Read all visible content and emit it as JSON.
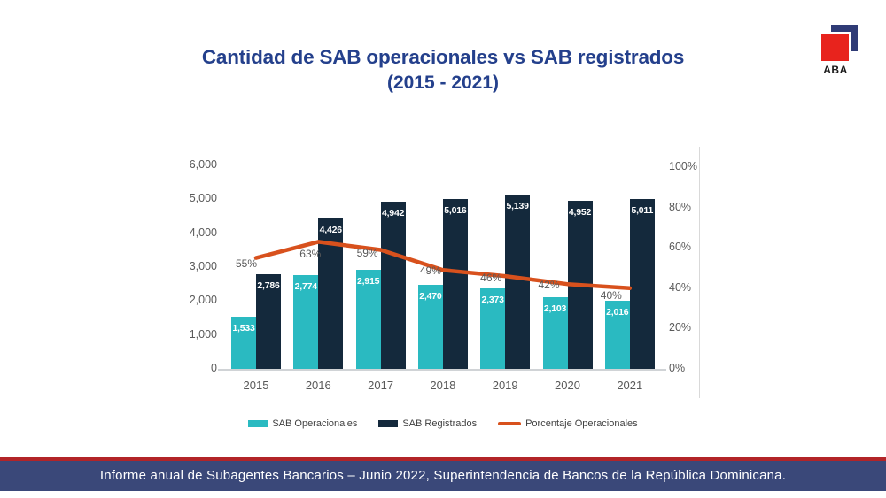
{
  "page": {
    "title_line1": "Cantidad de SAB operacionales vs SAB registrados",
    "title_line2": "(2015 - 2021)",
    "footer": "Informe anual de Subagentes Bancarios – Junio 2022, Superintendencia de Bancos de la República Dominicana.",
    "logo_text": "ABA"
  },
  "colors": {
    "title_blue": "#24408c",
    "bar_teal": "#2abac1",
    "bar_navy": "#14293c",
    "line_orange": "#d8511d",
    "axis_gray": "#595959",
    "footer_navy": "#3a4879",
    "footer_red": "#b22428",
    "logo_navy": "#2f3b76",
    "logo_red": "#e8231d"
  },
  "chart_data": {
    "type": "bar",
    "subtype": "grouped bars with right-axis percentage line",
    "title": "Cantidad de SAB operacionales vs SAB registrados (2015 - 2021)",
    "categories": [
      "2015",
      "2016",
      "2017",
      "2018",
      "2019",
      "2020",
      "2021"
    ],
    "series": [
      {
        "name": "SAB Operacionales",
        "chart": "bar",
        "axis": "left",
        "color": "#2abac1",
        "values": [
          1533,
          2774,
          2915,
          2470,
          2373,
          2103,
          2016
        ],
        "labels": [
          "1,533",
          "2,774",
          "2,915",
          "2,470",
          "2,373",
          "2,103",
          "2,016"
        ]
      },
      {
        "name": "SAB Registrados",
        "chart": "bar",
        "axis": "left",
        "color": "#14293c",
        "values": [
          2786,
          4426,
          4942,
          5016,
          5139,
          4952,
          5011
        ],
        "labels": [
          "2,786",
          "4,426",
          "4,942",
          "5,016",
          "5,139",
          "4,952",
          "5,011"
        ]
      },
      {
        "name": "Porcentaje Operacionales",
        "chart": "line",
        "axis": "right",
        "color": "#d8511d",
        "values": [
          55,
          63,
          59,
          49,
          46,
          42,
          40
        ],
        "labels": [
          "55%",
          "63%",
          "59%",
          "49%",
          "46%",
          "42%",
          "40%"
        ]
      }
    ],
    "left_axis": {
      "min": 0,
      "max": 6000,
      "tick_step": 1000,
      "ticks": [
        "0",
        "1,000",
        "2,000",
        "3,000",
        "4,000",
        "5,000",
        "6,000"
      ]
    },
    "right_axis": {
      "min": 0,
      "max": 100,
      "tick_step": 20,
      "ticks": [
        "0%",
        "20%",
        "40%",
        "60%",
        "80%",
        "100%"
      ]
    },
    "legend_position": "bottom",
    "grid": false
  }
}
